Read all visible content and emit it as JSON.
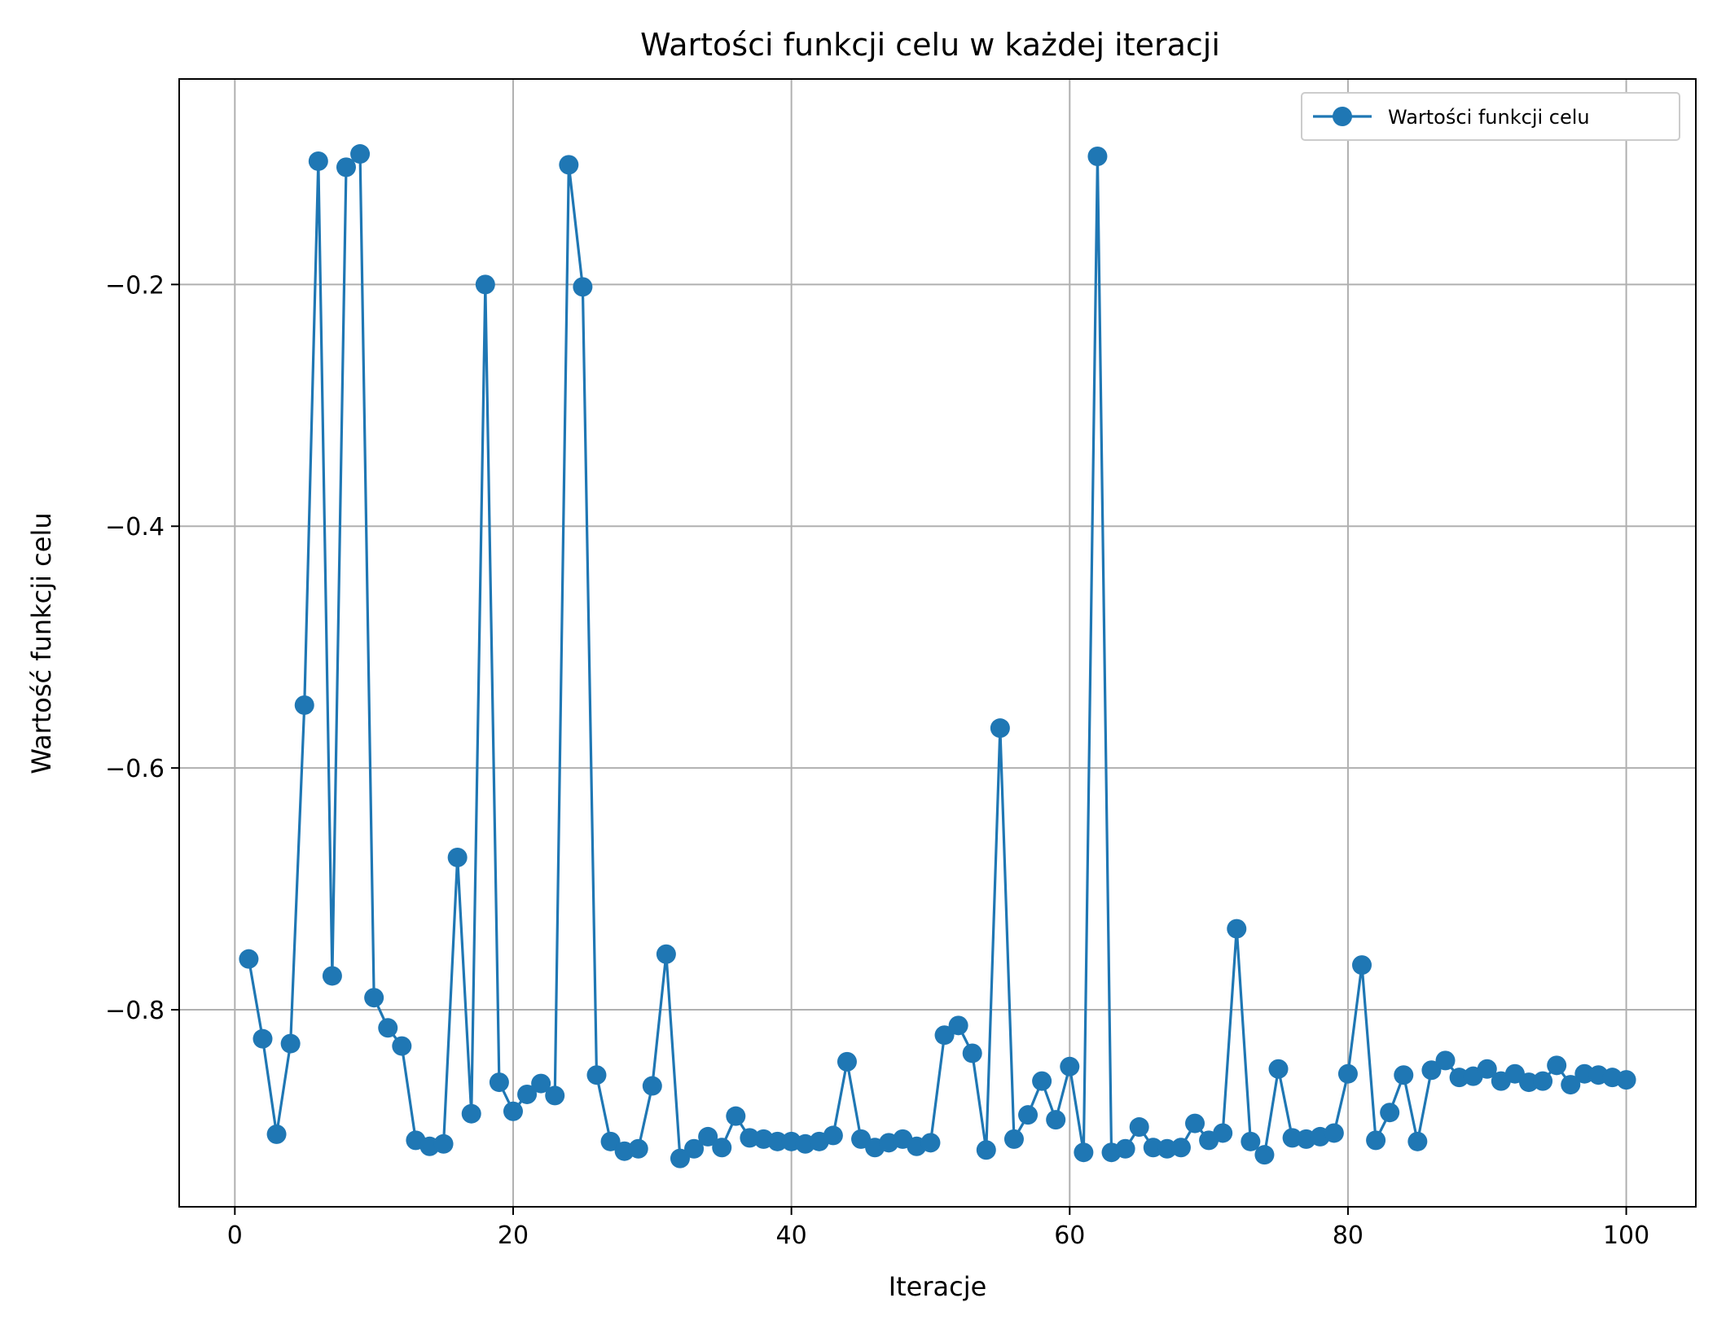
{
  "chart_data": {
    "type": "line",
    "title": "Wartości funkcji celu w każdej iteracji",
    "xlabel": "Iteracje",
    "ylabel": "Wartość funkcji celu",
    "xlim": [
      -4,
      105
    ],
    "ylim": [
      -0.963,
      -0.03
    ],
    "xticks": [
      0,
      20,
      40,
      60,
      80,
      100
    ],
    "xtick_labels": [
      "0",
      "20",
      "40",
      "60",
      "80",
      "100"
    ],
    "yticks": [
      -0.2,
      -0.4,
      -0.6,
      -0.8
    ],
    "ytick_labels": [
      "−0.2",
      "−0.4",
      "−0.6",
      "−0.8"
    ],
    "grid": true,
    "legend_position": "top-right",
    "series": [
      {
        "name": "Wartości funkcji celu",
        "color": "#1f77b4",
        "marker": "circle",
        "x": [
          1,
          2,
          3,
          4,
          5,
          6,
          7,
          8,
          9,
          10,
          11,
          12,
          13,
          14,
          15,
          16,
          17,
          18,
          19,
          20,
          21,
          22,
          23,
          24,
          25,
          26,
          27,
          28,
          29,
          30,
          31,
          32,
          33,
          34,
          35,
          36,
          37,
          38,
          39,
          40,
          41,
          42,
          43,
          44,
          45,
          46,
          47,
          48,
          49,
          50,
          51,
          52,
          53,
          54,
          55,
          56,
          57,
          58,
          59,
          60,
          61,
          62,
          63,
          64,
          65,
          66,
          67,
          68,
          69,
          70,
          71,
          72,
          73,
          74,
          75,
          76,
          77,
          78,
          79,
          80,
          81,
          82,
          83,
          84,
          85,
          86,
          87,
          88,
          89,
          90,
          91,
          92,
          93,
          94,
          95,
          96,
          97,
          98,
          99,
          100
        ],
        "values": [
          -0.758,
          -0.824,
          -0.903,
          -0.828,
          -0.548,
          -0.098,
          -0.772,
          -0.103,
          -0.092,
          -0.79,
          -0.815,
          -0.83,
          -0.908,
          -0.913,
          -0.911,
          -0.674,
          -0.886,
          -0.2,
          -0.86,
          -0.884,
          -0.87,
          -0.861,
          -0.871,
          -0.101,
          -0.202,
          -0.854,
          -0.909,
          -0.917,
          -0.915,
          -0.863,
          -0.754,
          -0.923,
          -0.915,
          -0.905,
          -0.914,
          -0.888,
          -0.906,
          -0.907,
          -0.909,
          -0.909,
          -0.911,
          -0.909,
          -0.904,
          -0.843,
          -0.907,
          -0.914,
          -0.91,
          -0.907,
          -0.913,
          -0.91,
          -0.821,
          -0.813,
          -0.836,
          -0.916,
          -0.567,
          -0.907,
          -0.887,
          -0.859,
          -0.891,
          -0.847,
          -0.918,
          -0.094,
          -0.918,
          -0.915,
          -0.897,
          -0.914,
          -0.915,
          -0.914,
          -0.894,
          -0.908,
          -0.902,
          -0.733,
          -0.909,
          -0.92,
          -0.849,
          -0.906,
          -0.907,
          -0.905,
          -0.902,
          -0.853,
          -0.763,
          -0.908,
          -0.885,
          -0.854,
          -0.909,
          -0.85,
          -0.842,
          -0.856,
          -0.855,
          -0.849,
          -0.859,
          -0.853,
          -0.86,
          -0.859,
          -0.846,
          -0.862,
          -0.853,
          -0.854,
          -0.856,
          -0.858
        ]
      }
    ]
  }
}
